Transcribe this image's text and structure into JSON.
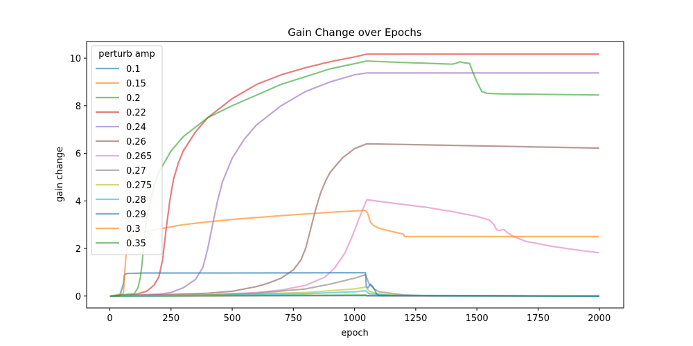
{
  "chart_data": {
    "type": "line",
    "title": "Gain Change over Epochs",
    "xlabel": "epoch",
    "ylabel": "gain change",
    "xlim": [
      -95,
      2100
    ],
    "ylim": [
      -0.5,
      10.7
    ],
    "xticks": [
      0,
      250,
      500,
      750,
      1000,
      1250,
      1500,
      1750,
      2000
    ],
    "yticks": [
      0,
      2,
      4,
      6,
      8,
      10
    ],
    "grid": false,
    "legend": {
      "title": "perturb amp",
      "placement": "top-left"
    },
    "series": [
      {
        "name": "0.1",
        "color": "#1f77b4",
        "points": [
          [
            0,
            0
          ],
          [
            1045,
            0.02
          ],
          [
            1050,
            0.01
          ],
          [
            2000,
            0
          ]
        ]
      },
      {
        "name": "0.15",
        "color": "#ff7f0e",
        "points": [
          [
            0,
            0
          ],
          [
            1045,
            0.03
          ],
          [
            1050,
            0.02
          ],
          [
            2000,
            0
          ]
        ]
      },
      {
        "name": "0.2",
        "color": "#2ca02c",
        "points": [
          [
            0,
            0
          ],
          [
            1045,
            0.04
          ],
          [
            1050,
            0.03
          ],
          [
            2000,
            0
          ]
        ]
      },
      {
        "name": "0.22",
        "color": "#d62728",
        "points": [
          [
            0,
            0
          ],
          [
            100,
            0.05
          ],
          [
            150,
            0.2
          ],
          [
            180,
            0.45
          ],
          [
            200,
            0.8
          ],
          [
            215,
            1.5
          ],
          [
            230,
            2.8
          ],
          [
            245,
            4.0
          ],
          [
            260,
            4.9
          ],
          [
            280,
            5.6
          ],
          [
            300,
            6.1
          ],
          [
            350,
            6.9
          ],
          [
            400,
            7.5
          ],
          [
            500,
            8.3
          ],
          [
            600,
            8.9
          ],
          [
            700,
            9.3
          ],
          [
            800,
            9.6
          ],
          [
            900,
            9.85
          ],
          [
            1000,
            10.05
          ],
          [
            1050,
            10.17
          ],
          [
            2000,
            10.17
          ]
        ]
      },
      {
        "name": "0.24",
        "color": "#9467bd",
        "points": [
          [
            0,
            0
          ],
          [
            200,
            0.08
          ],
          [
            250,
            0.15
          ],
          [
            300,
            0.35
          ],
          [
            350,
            0.7
          ],
          [
            380,
            1.2
          ],
          [
            400,
            2.0
          ],
          [
            420,
            3.0
          ],
          [
            440,
            4.0
          ],
          [
            460,
            4.8
          ],
          [
            500,
            5.8
          ],
          [
            550,
            6.6
          ],
          [
            600,
            7.2
          ],
          [
            700,
            8.0
          ],
          [
            800,
            8.6
          ],
          [
            900,
            9.0
          ],
          [
            1000,
            9.3
          ],
          [
            1050,
            9.38
          ],
          [
            2000,
            9.38
          ]
        ]
      },
      {
        "name": "0.26",
        "color": "#8c564b",
        "points": [
          [
            0,
            0
          ],
          [
            200,
            0.05
          ],
          [
            400,
            0.12
          ],
          [
            500,
            0.2
          ],
          [
            600,
            0.4
          ],
          [
            650,
            0.55
          ],
          [
            700,
            0.75
          ],
          [
            750,
            1.1
          ],
          [
            780,
            1.5
          ],
          [
            800,
            2.0
          ],
          [
            820,
            2.8
          ],
          [
            840,
            3.6
          ],
          [
            860,
            4.3
          ],
          [
            880,
            4.8
          ],
          [
            900,
            5.2
          ],
          [
            950,
            5.8
          ],
          [
            1000,
            6.2
          ],
          [
            1050,
            6.4
          ],
          [
            2000,
            6.22
          ]
        ]
      },
      {
        "name": "0.265",
        "color": "#e377c2",
        "points": [
          [
            0,
            0
          ],
          [
            400,
            0.05
          ],
          [
            600,
            0.15
          ],
          [
            700,
            0.25
          ],
          [
            800,
            0.45
          ],
          [
            880,
            0.8
          ],
          [
            920,
            1.2
          ],
          [
            960,
            1.8
          ],
          [
            990,
            2.5
          ],
          [
            1020,
            3.3
          ],
          [
            1050,
            4.05
          ],
          [
            1100,
            3.98
          ],
          [
            1200,
            3.85
          ],
          [
            1300,
            3.72
          ],
          [
            1400,
            3.55
          ],
          [
            1500,
            3.35
          ],
          [
            1550,
            3.2
          ],
          [
            1570,
            3.0
          ],
          [
            1580,
            2.8
          ],
          [
            1590,
            2.75
          ],
          [
            1600,
            2.78
          ],
          [
            1610,
            2.8
          ],
          [
            1620,
            2.7
          ],
          [
            1650,
            2.5
          ],
          [
            1700,
            2.3
          ],
          [
            1800,
            2.1
          ],
          [
            1900,
            1.95
          ],
          [
            2000,
            1.82
          ]
        ]
      },
      {
        "name": "0.27",
        "color": "#7f7f7f",
        "points": [
          [
            0,
            0
          ],
          [
            400,
            0.05
          ],
          [
            600,
            0.12
          ],
          [
            800,
            0.3
          ],
          [
            900,
            0.5
          ],
          [
            1000,
            0.75
          ],
          [
            1045,
            0.9
          ],
          [
            1060,
            0.5
          ],
          [
            1080,
            0.3
          ],
          [
            1100,
            0.18
          ],
          [
            1200,
            0.05
          ],
          [
            1300,
            0.01
          ],
          [
            2000,
            0
          ]
        ]
      },
      {
        "name": "0.275",
        "color": "#bcbd22",
        "points": [
          [
            0,
            0
          ],
          [
            400,
            0.04
          ],
          [
            800,
            0.15
          ],
          [
            1000,
            0.3
          ],
          [
            1045,
            0.38
          ],
          [
            1060,
            0.2
          ],
          [
            1100,
            0.08
          ],
          [
            1200,
            0.02
          ],
          [
            2000,
            0
          ]
        ]
      },
      {
        "name": "0.28",
        "color": "#17becf",
        "points": [
          [
            0,
            0
          ],
          [
            400,
            0.03
          ],
          [
            800,
            0.1
          ],
          [
            1000,
            0.18
          ],
          [
            1045,
            0.22
          ],
          [
            1060,
            0.1
          ],
          [
            1150,
            0.03
          ],
          [
            2000,
            0
          ]
        ]
      },
      {
        "name": "0.29",
        "color": "#1f77b4",
        "points": [
          [
            0,
            0
          ],
          [
            40,
            0.02
          ],
          [
            55,
            0.5
          ],
          [
            60,
            0.9
          ],
          [
            70,
            0.95
          ],
          [
            150,
            0.97
          ],
          [
            500,
            0.97
          ],
          [
            1045,
            0.98
          ],
          [
            1048,
            0.4
          ],
          [
            1055,
            0.35
          ],
          [
            1065,
            0.5
          ],
          [
            1075,
            0.4
          ],
          [
            1090,
            0.1
          ],
          [
            1100,
            0.02
          ],
          [
            2000,
            0
          ]
        ]
      },
      {
        "name": "0.3",
        "color": "#ff7f0e",
        "points": [
          [
            0,
            0
          ],
          [
            55,
            0.1
          ],
          [
            60,
            0.8
          ],
          [
            65,
            1.6
          ],
          [
            72,
            2.2
          ],
          [
            80,
            2.5
          ],
          [
            120,
            2.65
          ],
          [
            200,
            2.82
          ],
          [
            300,
            3.0
          ],
          [
            400,
            3.12
          ],
          [
            500,
            3.22
          ],
          [
            600,
            3.3
          ],
          [
            700,
            3.38
          ],
          [
            800,
            3.45
          ],
          [
            900,
            3.52
          ],
          [
            1000,
            3.58
          ],
          [
            1045,
            3.6
          ],
          [
            1055,
            3.45
          ],
          [
            1065,
            3.1
          ],
          [
            1080,
            2.95
          ],
          [
            1100,
            2.85
          ],
          [
            1150,
            2.72
          ],
          [
            1200,
            2.6
          ],
          [
            1205,
            2.5
          ],
          [
            2000,
            2.5
          ]
        ]
      },
      {
        "name": "0.35",
        "color": "#2ca02c",
        "points": [
          [
            0,
            0
          ],
          [
            100,
            0.1
          ],
          [
            115,
            0.35
          ],
          [
            125,
            0.8
          ],
          [
            132,
            1.4
          ],
          [
            140,
            2.3
          ],
          [
            150,
            3.2
          ],
          [
            165,
            4.0
          ],
          [
            180,
            4.6
          ],
          [
            200,
            5.2
          ],
          [
            250,
            6.1
          ],
          [
            300,
            6.7
          ],
          [
            400,
            7.5
          ],
          [
            500,
            8.0
          ],
          [
            700,
            8.9
          ],
          [
            900,
            9.55
          ],
          [
            1050,
            9.88
          ],
          [
            1200,
            9.82
          ],
          [
            1400,
            9.75
          ],
          [
            1420,
            9.8
          ],
          [
            1430,
            9.85
          ],
          [
            1450,
            9.8
          ],
          [
            1470,
            9.78
          ],
          [
            1480,
            9.5
          ],
          [
            1500,
            9.0
          ],
          [
            1520,
            8.6
          ],
          [
            1540,
            8.52
          ],
          [
            1600,
            8.5
          ],
          [
            2000,
            8.45
          ]
        ]
      }
    ]
  }
}
